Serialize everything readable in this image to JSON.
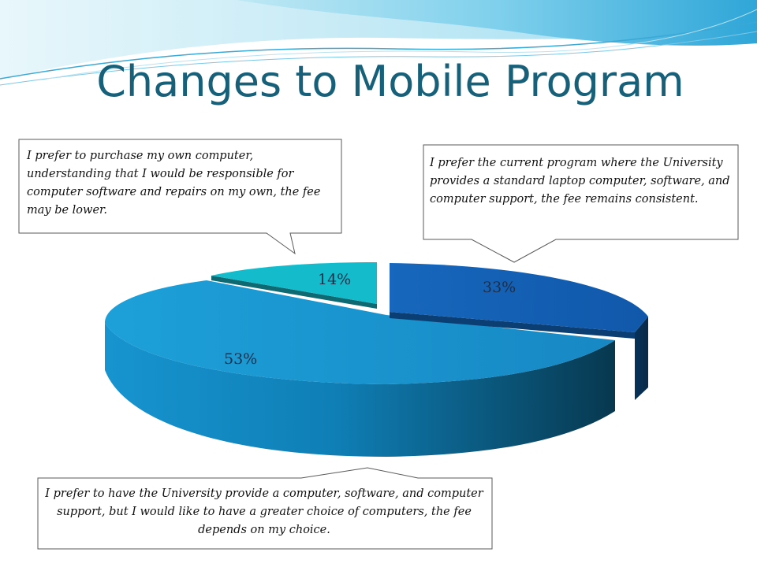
{
  "slide": {
    "title": "Changes to Mobile Program"
  },
  "chart_data": {
    "type": "pie",
    "style": "3d-exploded",
    "title": "",
    "slices": [
      {
        "label": "I prefer the current program where the University provides a standard laptop computer, software, and computer support, the fee remains consistent.",
        "value": 33,
        "value_label": "33%",
        "color": "#1763b8"
      },
      {
        "label": "I prefer to have the University provide a computer, software, and computer support, but I would like to have a greater choice of computers, the fee depends on my choice.",
        "value": 53,
        "value_label": "53%",
        "color": "#1a93cf"
      },
      {
        "label": "I prefer to purchase my own computer, understanding that I would be responsible for computer software and repairs on my own, the fee may be lower.",
        "value": 14,
        "value_label": "14%",
        "color": "#14bccb"
      }
    ]
  },
  "callouts": {
    "own_computer": "I prefer to purchase my own computer, understanding that I would be responsible for computer software and repairs on my own, the fee may be lower.",
    "current_program": "I prefer the current program where the University provides a standard laptop computer, software, and computer support, the fee remains consistent.",
    "greater_choice": "I prefer to have the University provide a computer, software, and computer support, but I would like to have a greater choice of computers, the fee depends on my choice."
  }
}
